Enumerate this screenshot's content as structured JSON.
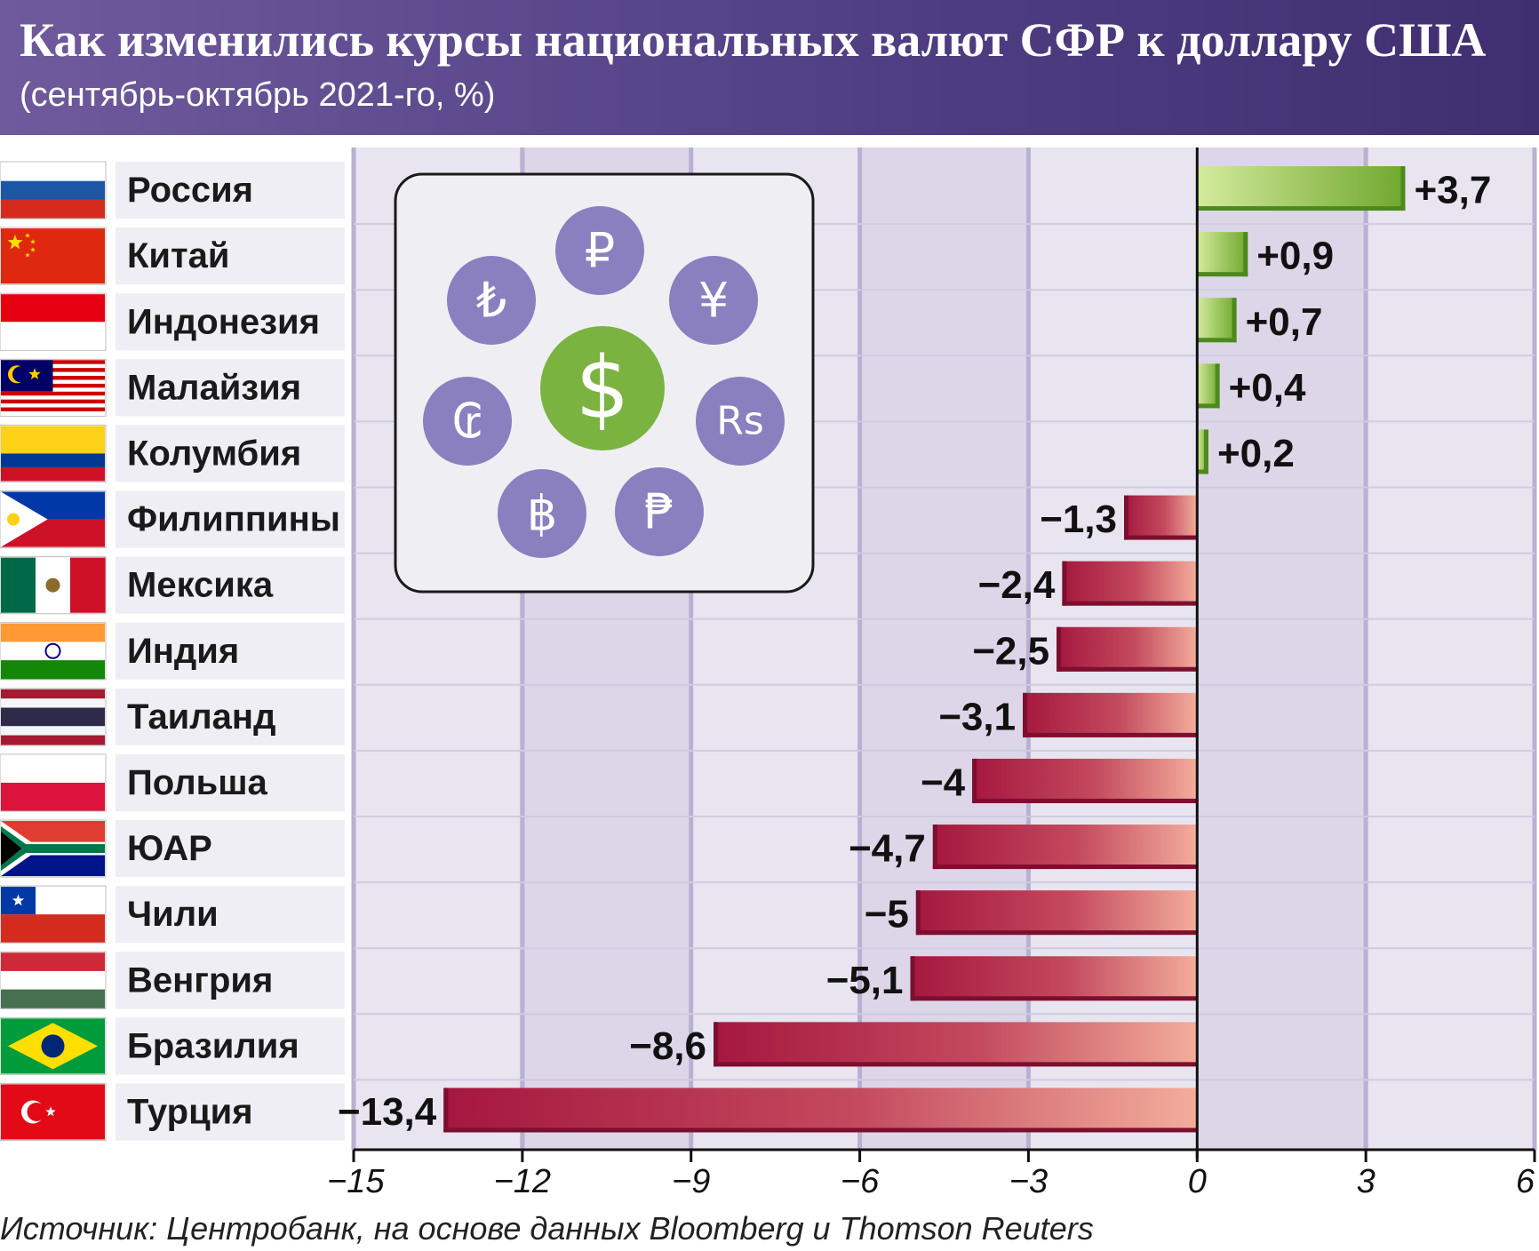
{
  "header": {
    "title": "Как изменились курсы национальных валют СФР к доллару США",
    "subtitle": "(сентябрь-октябрь 2021-го, %)"
  },
  "source": "Источник: Центробанк, на основе данных Bloomberg и Thomson Reuters",
  "chart_data": {
    "type": "bar",
    "orientation": "horizontal",
    "title": "Как изменились курсы национальных валют СФР к доллару США",
    "subtitle": "(сентябрь-октябрь 2021-го, %)",
    "categories": [
      "Россия",
      "Китай",
      "Индонезия",
      "Малайзия",
      "Колумбия",
      "Филиппины",
      "Мексика",
      "Индия",
      "Таиланд",
      "Польша",
      "ЮАР",
      "Чили",
      "Венгрия",
      "Бразилия",
      "Турция"
    ],
    "values": [
      3.7,
      0.9,
      0.7,
      0.4,
      0.2,
      -1.3,
      -2.4,
      -2.5,
      -3.1,
      -4,
      -4.7,
      -5,
      -5.1,
      -8.6,
      -13.4
    ],
    "value_labels": [
      "+3,7",
      "+0,9",
      "+0,7",
      "+0,4",
      "+0,2",
      "−1,3",
      "−2,4",
      "−2,5",
      "−3,1",
      "−4",
      "−4,7",
      "−5",
      "−5,1",
      "−8,6",
      "−13,4"
    ],
    "xlim": [
      -15,
      6
    ],
    "xticks": [
      -15,
      -12,
      -9,
      -6,
      -3,
      0,
      3,
      6
    ],
    "xtick_labels": [
      "−15",
      "−12",
      "−9",
      "−6",
      "−3",
      "0",
      "3",
      "6"
    ],
    "grid": true,
    "colors": {
      "positive": "#7fb43c",
      "negative": "#b01e48",
      "band": "#dcd6e8",
      "band_light": "#e8e5f0",
      "gridline": "#b9b0d2"
    },
    "flags": [
      "russia-flag",
      "china-flag",
      "indonesia-flag",
      "malaysia-flag",
      "colombia-flag",
      "philippines-flag",
      "mexico-flag",
      "india-flag",
      "thailand-flag",
      "poland-flag",
      "south-africa-flag",
      "chile-flag",
      "hungary-flag",
      "brazil-flag",
      "turkey-flag"
    ]
  },
  "currency_icons": {
    "center": "$",
    "symbols": [
      "₽",
      "¥",
      "Rs",
      "₱",
      "฿",
      "₢",
      "₺"
    ]
  }
}
